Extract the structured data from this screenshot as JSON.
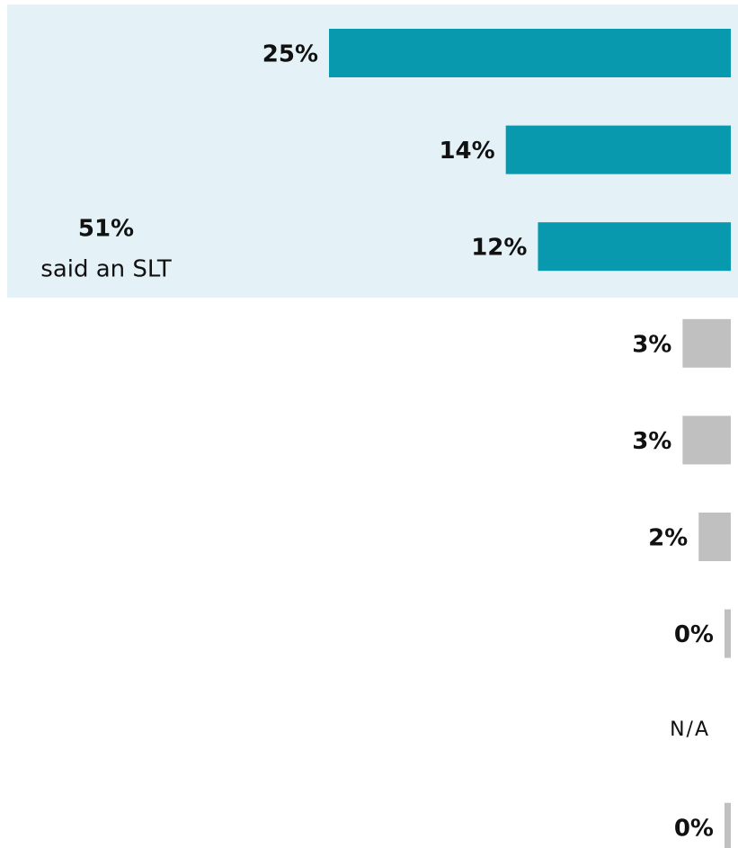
{
  "chart_data": {
    "type": "hbar",
    "categories": [
      null,
      null,
      null,
      null,
      null,
      null,
      null,
      null,
      null
    ],
    "values": [
      25,
      14,
      12,
      3,
      3,
      2,
      0,
      null,
      0
    ],
    "value_labels": [
      "25%",
      "14%",
      "12%",
      "3%",
      "3%",
      "2%",
      "0%",
      "N/A",
      "0%"
    ],
    "colors": [
      "#0899ae",
      "#0899ae",
      "#0899ae",
      "#c0c0c0",
      "#c0c0c0",
      "#c0c0c0",
      "#c0c0c0",
      "#c0c0c0",
      "#c0c0c0"
    ],
    "annotation": {
      "label": "51%",
      "text": "said an SLT"
    }
  }
}
